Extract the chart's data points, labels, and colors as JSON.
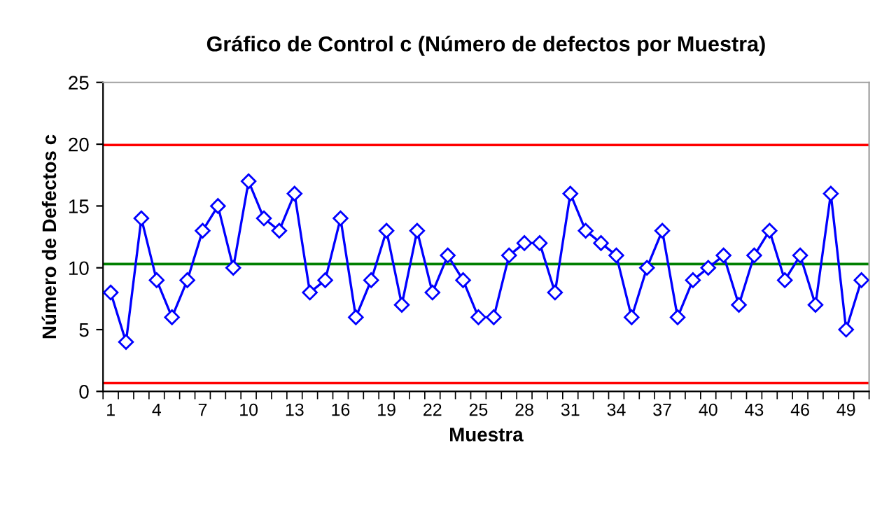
{
  "chart_data": {
    "type": "line",
    "title": "Gráfico de Control c (Número de defectos por Muestra)",
    "xlabel": "Muestra",
    "ylabel": "Número de Defectos c",
    "categories": [
      "1",
      null,
      null,
      "4",
      null,
      null,
      "7",
      null,
      null,
      "10",
      null,
      null,
      "13",
      null,
      null,
      "16",
      null,
      null,
      "19",
      null,
      null,
      "22",
      null,
      null,
      "25",
      null,
      null,
      "28",
      null,
      null,
      "31",
      null,
      null,
      "34",
      null,
      null,
      "37",
      null,
      null,
      "40",
      null,
      null,
      "43",
      null,
      null,
      "46",
      null,
      null,
      "49",
      null
    ],
    "series": [
      {
        "color": "#0000ff",
        "values": [
          8,
          4,
          14,
          9,
          6,
          9,
          13,
          15,
          10,
          17,
          14,
          13,
          16,
          8,
          9,
          14,
          6,
          9,
          13,
          7,
          13,
          8,
          11,
          9,
          6,
          6,
          11,
          12,
          12,
          8,
          16,
          13,
          12,
          11,
          6,
          10,
          13,
          6,
          9,
          10,
          11,
          7,
          11,
          13,
          9,
          11,
          7,
          16,
          5,
          9
        ]
      }
    ],
    "ylim": [
      0,
      25
    ],
    "yticks": [
      0,
      5,
      10,
      15,
      20,
      25
    ],
    "ref_lines": [
      {
        "axis": "y",
        "value": 19.93,
        "color": "#ff0000"
      },
      {
        "axis": "y",
        "value": 10.3,
        "color": "#008000"
      },
      {
        "axis": "y",
        "value": 0.67,
        "color": "#ff0000"
      }
    ],
    "marker": "diamond",
    "line_style": "solid",
    "grid": false,
    "legend": false
  }
}
